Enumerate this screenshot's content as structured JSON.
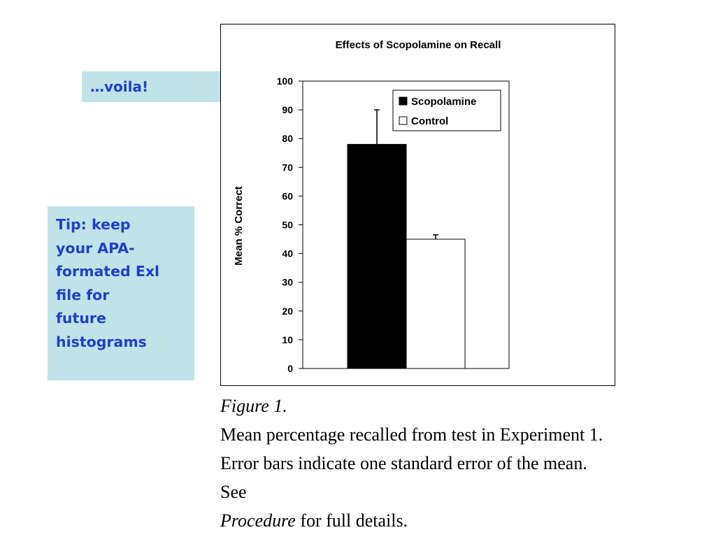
{
  "callouts": {
    "voila": "…voila!",
    "tip": "Tip: keep\nyour APA-\nformated Exl\nfile for\nfuture\nhistograms"
  },
  "caption": {
    "figure_label": "Figure 1.",
    "body": "Mean percentage recalled from test in Experiment 1. Error bars indicate one standard error of the mean. See",
    "procedure": "Procedure",
    "tail": " for full details."
  },
  "colors": {
    "callout_bg": "#bfe3e6",
    "callout_text": "#1f3fc9"
  },
  "chart_data": {
    "type": "bar",
    "title": "Effects of Scopolamine on Recall",
    "xlabel": "",
    "ylabel": "Mean % Correct",
    "ylim": [
      0,
      100
    ],
    "yticks": [
      0,
      10,
      20,
      30,
      40,
      50,
      60,
      70,
      80,
      90,
      100
    ],
    "grid": false,
    "legend_position": "top-right",
    "series": [
      {
        "name": "Scopolamine",
        "value": 78,
        "error": 12,
        "color": "#000000"
      },
      {
        "name": "Control",
        "value": 45,
        "error": 1.5,
        "color": "#ffffff"
      }
    ]
  }
}
